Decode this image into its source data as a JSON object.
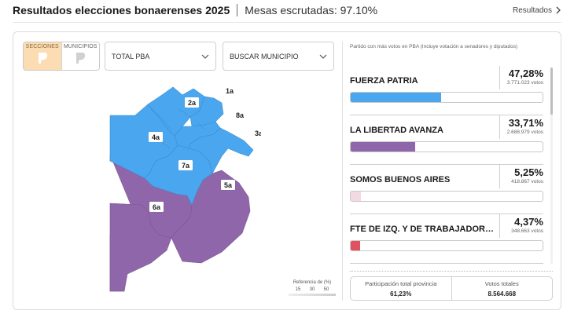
{
  "header": {
    "title": "Resultados elecciones bonaerenses 2025",
    "subtitle": "Mesas escrutadas: 97.10%",
    "link_label": "Resultados"
  },
  "controls": {
    "segment_sections": "SECCIONES",
    "segment_municipalities": "MUNICIPIOS",
    "dropdown_total": "TOTAL PBA",
    "dropdown_search": "BUSCAR MUNICIPIO"
  },
  "map": {
    "sections": [
      {
        "label": "1a",
        "color": "#4aa6ee"
      },
      {
        "label": "2a",
        "color": "#4aa6ee"
      },
      {
        "label": "3a",
        "color": "#4aa6ee"
      },
      {
        "label": "4a",
        "color": "#4aa6ee"
      },
      {
        "label": "5a",
        "color": "#9066aa"
      },
      {
        "label": "6a",
        "color": "#9066aa"
      },
      {
        "label": "7a",
        "color": "#4aa6ee"
      },
      {
        "label": "8a",
        "color": "#4aa6ee"
      }
    ],
    "legend": {
      "title": "Referencia de (%)",
      "ticks": [
        "15",
        "30",
        "50"
      ]
    }
  },
  "results": {
    "caption": "Partido con más votos en PBA (Incluye votación a senadores y diputados)",
    "parties": [
      {
        "name": "FUERZA PATRIA",
        "pct": "47,28%",
        "votes": "3.771.023 votos",
        "share": 0.4728,
        "color": "#4aa6ee"
      },
      {
        "name": "LA LIBERTAD AVANZA",
        "pct": "33,71%",
        "votes": "2.688.979 votos",
        "share": 0.3371,
        "color": "#9066aa"
      },
      {
        "name": "SOMOS BUENOS AIRES",
        "pct": "5,25%",
        "votes": "418.867 votos",
        "share": 0.0525,
        "color": "#f4d8e4"
      },
      {
        "name": "FTE DE IZQ. Y DE TRABAJADORES - UNIDAD",
        "pct": "4,37%",
        "votes": "348.663 votos",
        "share": 0.0437,
        "color": "#e05260"
      }
    ]
  },
  "summary": {
    "participation_label": "Participación total provincia",
    "participation_value": "61,23%",
    "votes_label": "Votos totales",
    "votes_value": "8.564.668"
  }
}
